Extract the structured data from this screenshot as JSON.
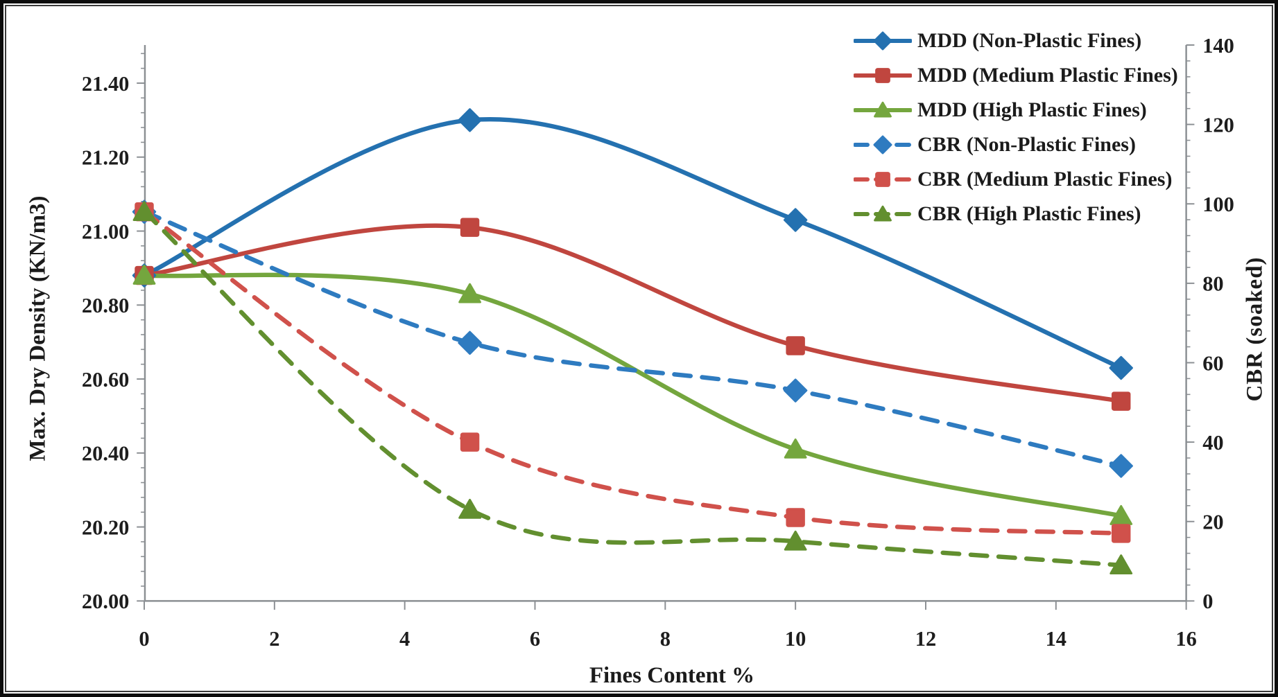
{
  "chart_data": {
    "type": "line",
    "x": [
      0,
      5,
      10,
      15
    ],
    "x_axis": {
      "label": "Fines Content %",
      "min": 0,
      "max": 16,
      "tick_labels": [
        "0",
        "2",
        "4",
        "6",
        "8",
        "10",
        "12",
        "14",
        "16"
      ]
    },
    "y_left_axis": {
      "label": "Max. Dry Density (KN/m3)",
      "min": 20.0,
      "max": 21.48,
      "major_tick_labels": [
        "21.40",
        "21.20",
        "21.00",
        "20.80",
        "20.60",
        "20.40",
        "20.20",
        "20.00"
      ],
      "minor_step": 0.04
    },
    "y_right_axis": {
      "label": "CBR  (soaked)",
      "min": 0,
      "max": 140,
      "major_tick_labels": [
        "140",
        "120",
        "100",
        "80",
        "60",
        "40",
        "20",
        "0"
      ],
      "minor_step": 4
    },
    "grid": false,
    "legend_position": "top-right",
    "series": [
      {
        "name": "MDD (Non-Plastic Fines)",
        "axis": "left",
        "line": "solid",
        "marker": "diamond",
        "color": "#2471B0",
        "values": [
          20.88,
          21.3,
          21.03,
          20.63
        ]
      },
      {
        "name": "MDD (Medium Plastic Fines)",
        "axis": "left",
        "line": "solid",
        "marker": "square",
        "color": "#C0463F",
        "values": [
          20.88,
          21.01,
          20.69,
          20.54
        ]
      },
      {
        "name": "MDD (High Plastic Fines)",
        "axis": "left",
        "line": "solid",
        "marker": "triangle",
        "color": "#74A63E",
        "values": [
          20.88,
          20.83,
          20.41,
          20.23
        ]
      },
      {
        "name": "CBR (Non-Plastic Fines)",
        "axis": "right",
        "line": "dashed",
        "marker": "diamond",
        "color": "#2E7BC0",
        "values": [
          98,
          65,
          53,
          34
        ]
      },
      {
        "name": "CBR (Medium Plastic Fines)",
        "axis": "right",
        "line": "dashed",
        "marker": "square",
        "color": "#D0514B",
        "values": [
          98,
          40,
          21,
          17
        ]
      },
      {
        "name": "CBR (High Plastic Fines)",
        "axis": "right",
        "line": "dashed",
        "marker": "triangle",
        "color": "#628F2F",
        "values": [
          98,
          23,
          15,
          9
        ]
      }
    ]
  }
}
